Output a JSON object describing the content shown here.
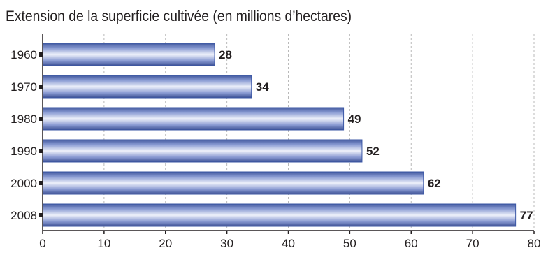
{
  "chart_data": {
    "type": "bar",
    "orientation": "horizontal",
    "title": "Extension de la superficie cultivée (en millions d’hectares)",
    "xlabel": "",
    "ylabel": "",
    "categories": [
      "1960",
      "1970",
      "1980",
      "1990",
      "2000",
      "2008"
    ],
    "values": [
      28,
      34,
      49,
      52,
      62,
      77
    ],
    "value_labels": [
      "28",
      "34",
      "49",
      "52",
      "62",
      "77"
    ],
    "xlim": [
      0,
      80
    ],
    "x_ticks": [
      0,
      10,
      20,
      30,
      40,
      50,
      60,
      70,
      80
    ],
    "x_tick_labels": [
      "0",
      "10",
      "20",
      "30",
      "40",
      "50",
      "60",
      "70",
      "80"
    ],
    "grid": "vertical dashed",
    "legend": "none",
    "colors": {
      "bar_edge": "#3b57a6",
      "bar_mid": "#eef1fa",
      "bar_dark": "#6f84c4",
      "axis": "#231f20",
      "grid": "#b9b9b9"
    }
  }
}
